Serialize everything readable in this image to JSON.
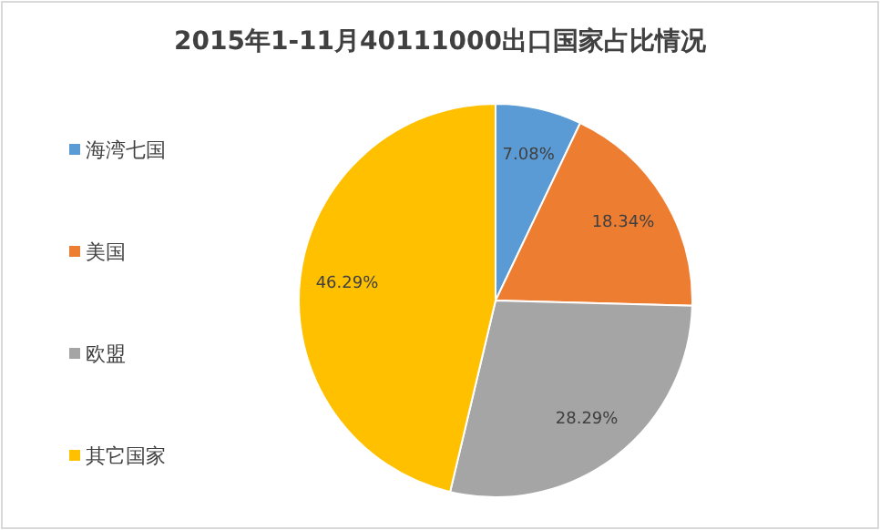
{
  "chart_data": {
    "type": "pie",
    "title": "2015年1-11月40111000出口国家占比情况",
    "categories": [
      "海湾七国",
      "美国",
      "欧盟",
      "其它国家"
    ],
    "values": [
      7.08,
      18.34,
      28.29,
      46.29
    ],
    "colors": [
      "#5b9bd5",
      "#ed7d31",
      "#a5a5a5",
      "#ffc000"
    ],
    "value_labels": [
      "7.08%",
      "18.34%",
      "28.29%",
      "46.29%"
    ],
    "legend": "left"
  }
}
